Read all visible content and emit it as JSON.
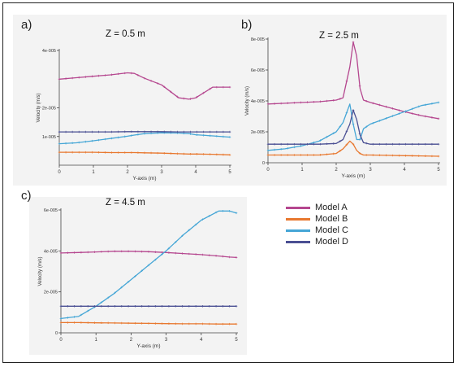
{
  "figure": {
    "panel_labels": [
      "a)",
      "b)",
      "c)"
    ]
  },
  "legend": {
    "items": [
      {
        "label": "Model A",
        "color": "#b5478f"
      },
      {
        "label": "Model B",
        "color": "#e8782f"
      },
      {
        "label": "Model C",
        "color": "#45a6d6"
      },
      {
        "label": "Model D",
        "color": "#4a4f93"
      }
    ]
  },
  "chart_data": [
    {
      "type": "line",
      "title": "Z = 0.5 m",
      "xlabel": "Y-axis (m)",
      "ylabel": "Velocity (m/s)",
      "xlim": [
        0,
        5
      ],
      "ylim": [
        0,
        4e-05
      ],
      "xticks": [
        "0",
        "1",
        "2",
        "3",
        "4",
        "5"
      ],
      "yticks": [
        {
          "v": 4e-05,
          "t": "4e-005"
        },
        {
          "v": 2e-05,
          "t": "2e-005"
        },
        {
          "v": 1e-05,
          "t": "1e-005"
        }
      ],
      "x": [
        0,
        0.5,
        1,
        1.5,
        2,
        2.2,
        2.5,
        3,
        3.5,
        3.8,
        4,
        4.5,
        5
      ],
      "series": [
        {
          "name": "Model A",
          "values": [
            3e-05,
            3.05e-05,
            3.1e-05,
            3.15e-05,
            3.22e-05,
            3.2e-05,
            3.03e-05,
            2.8e-05,
            2.35e-05,
            2.3e-05,
            2.35e-05,
            2.72e-05,
            2.72e-05
          ]
        },
        {
          "name": "Model B",
          "values": [
            4.5e-06,
            4.5e-06,
            4.5e-06,
            4.4e-06,
            4.4e-06,
            4.4e-06,
            4.3e-06,
            4.2e-06,
            4e-06,
            3.9e-06,
            3.9e-06,
            3.8e-06,
            3.6e-06
          ]
        },
        {
          "name": "Model C",
          "values": [
            7.5e-06,
            7.8e-06,
            8.5e-06,
            9.3e-06,
            1.01e-05,
            1.05e-05,
            1.1e-05,
            1.13e-05,
            1.12e-05,
            1.1e-05,
            1.06e-05,
            1.02e-05,
            9.8e-06
          ]
        },
        {
          "name": "Model D",
          "values": [
            1.16e-05,
            1.16e-05,
            1.16e-05,
            1.16e-05,
            1.17e-05,
            1.17e-05,
            1.17e-05,
            1.17e-05,
            1.16e-05,
            1.16e-05,
            1.16e-05,
            1.16e-05,
            1.16e-05
          ]
        }
      ]
    },
    {
      "type": "line",
      "title": "Z = 2.5 m",
      "xlabel": "Y-axis (m)",
      "ylabel": "Velocity (m/s)",
      "xlim": [
        0,
        5
      ],
      "ylim": [
        0,
        8e-05
      ],
      "xticks": [
        "0",
        "1",
        "2",
        "3",
        "4",
        "5"
      ],
      "yticks": [
        {
          "v": 8e-05,
          "t": "8e-005"
        },
        {
          "v": 6e-05,
          "t": "6e-005"
        },
        {
          "v": 4e-05,
          "t": "4e-005"
        },
        {
          "v": 2e-05,
          "t": "2e-005"
        },
        {
          "v": 0,
          "t": "0"
        }
      ],
      "x": [
        0,
        0.5,
        1,
        1.5,
        2,
        2.2,
        2.4,
        2.5,
        2.6,
        2.7,
        2.8,
        3,
        3.5,
        4,
        4.5,
        5
      ],
      "series": [
        {
          "name": "Model A",
          "values": [
            3.8e-05,
            3.85e-05,
            3.9e-05,
            3.95e-05,
            4.05e-05,
            4.2e-05,
            6.2e-05,
            7.8e-05,
            6.9e-05,
            4.8e-05,
            4.05e-05,
            3.9e-05,
            3.6e-05,
            3.3e-05,
            3.05e-05,
            2.85e-05
          ]
        },
        {
          "name": "Model B",
          "values": [
            5e-06,
            5e-06,
            5e-06,
            5e-06,
            6e-06,
            9e-06,
            1.4e-05,
            1.2e-05,
            8e-06,
            6e-06,
            5e-06,
            5e-06,
            4.8e-06,
            4.6e-06,
            4.4e-06,
            4.2e-06
          ]
        },
        {
          "name": "Model C",
          "values": [
            8e-06,
            9e-06,
            1.1e-05,
            1.4e-05,
            2e-05,
            2.6e-05,
            3.8e-05,
            2.5e-05,
            1.5e-05,
            1.5e-05,
            2.2e-05,
            2.5e-05,
            2.9e-05,
            3.3e-05,
            3.7e-05,
            3.9e-05
          ]
        },
        {
          "name": "Model D",
          "values": [
            1.2e-05,
            1.2e-05,
            1.2e-05,
            1.2e-05,
            1.25e-05,
            1.5e-05,
            2.5e-05,
            3.4e-05,
            2.8e-05,
            1.8e-05,
            1.3e-05,
            1.2e-05,
            1.2e-05,
            1.2e-05,
            1.2e-05,
            1.2e-05
          ]
        }
      ]
    },
    {
      "type": "line",
      "title": "Z = 4.5 m",
      "xlabel": "Y-axis (m)",
      "ylabel": "Velocity (m/s)",
      "xlim": [
        0,
        5
      ],
      "ylim": [
        0,
        6e-05
      ],
      "xticks": [
        "0",
        "1",
        "2",
        "3",
        "4",
        "5"
      ],
      "yticks": [
        {
          "v": 6e-05,
          "t": "6e-005"
        },
        {
          "v": 4e-05,
          "t": "4e-005"
        },
        {
          "v": 2e-05,
          "t": "2e-005"
        },
        {
          "v": 0,
          "t": "0"
        }
      ],
      "x": [
        0,
        0.5,
        1,
        1.5,
        2,
        2.5,
        3,
        3.5,
        4,
        4.5,
        4.8,
        5
      ],
      "series": [
        {
          "name": "Model A",
          "values": [
            3.9e-05,
            3.92e-05,
            3.95e-05,
            3.98e-05,
            3.98e-05,
            3.96e-05,
            3.92e-05,
            3.87e-05,
            3.82e-05,
            3.75e-05,
            3.7e-05,
            3.68e-05
          ]
        },
        {
          "name": "Model B",
          "values": [
            5e-06,
            5e-06,
            4.9e-06,
            4.8e-06,
            4.7e-06,
            4.6e-06,
            4.5e-06,
            4.4e-06,
            4.4e-06,
            4.3e-06,
            4.3e-06,
            4.3e-06
          ]
        },
        {
          "name": "Model C",
          "values": [
            7e-06,
            8e-06,
            1.3e-05,
            1.9e-05,
            2.6e-05,
            3.3e-05,
            4e-05,
            4.8e-05,
            5.5e-05,
            5.95e-05,
            5.95e-05,
            5.85e-05
          ]
        },
        {
          "name": "Model D",
          "values": [
            1.3e-05,
            1.3e-05,
            1.3e-05,
            1.3e-05,
            1.3e-05,
            1.3e-05,
            1.3e-05,
            1.3e-05,
            1.3e-05,
            1.3e-05,
            1.3e-05,
            1.3e-05
          ]
        }
      ]
    }
  ]
}
